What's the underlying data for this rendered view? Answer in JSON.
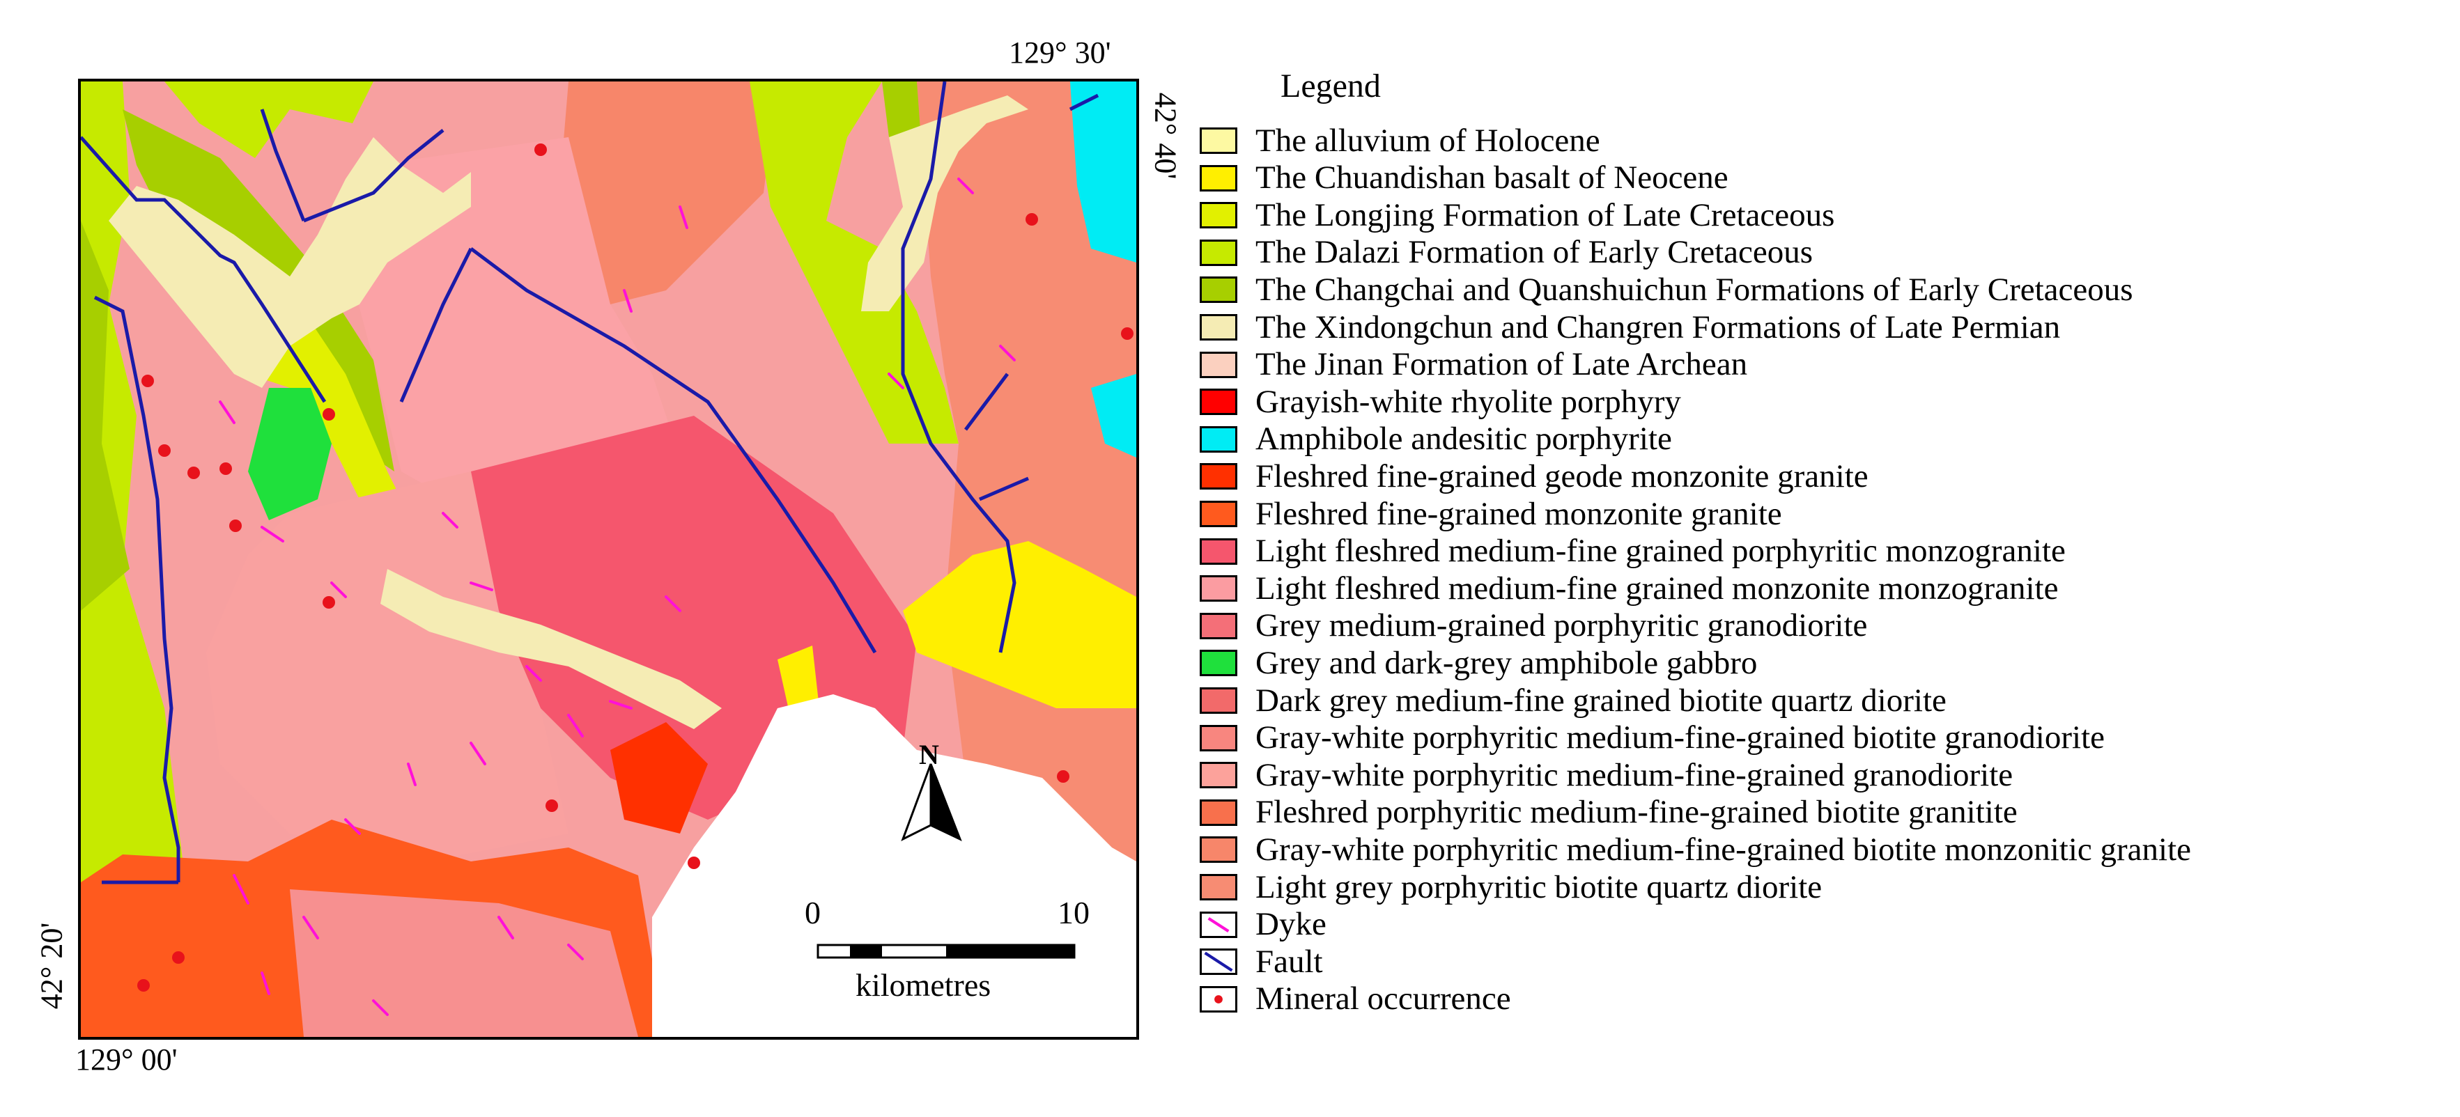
{
  "map": {
    "coords": {
      "top_right": "129° 30'",
      "right_top": "42° 40'",
      "left_bottom": "42° 20'",
      "bottom_left": "129° 00'"
    },
    "north_label": "N",
    "scale": {
      "start": "0",
      "end": "10",
      "unit": "kilometres"
    }
  },
  "legend": {
    "title": "Legend",
    "items": [
      {
        "label": "The alluvium of Holocene",
        "color": "#fdf9a2",
        "kind": "fill"
      },
      {
        "label": "The Chuandishan basalt of Neocene",
        "color": "#ffef00",
        "kind": "fill"
      },
      {
        "label": "The Longjing Formation of Late Cretaceous",
        "color": "#e2f000",
        "kind": "fill"
      },
      {
        "label": "The Dalazi Formation of Early Cretaceous",
        "color": "#c6ea00",
        "kind": "fill"
      },
      {
        "label": "The Changchai and Quanshuichun Formations of Early Cretaceous",
        "color": "#a7cf00",
        "kind": "fill"
      },
      {
        "label": "The Xindongchun and Changren Formations of Late Permian",
        "color": "#f5ecb4",
        "kind": "fill"
      },
      {
        "label": "The Jinan Formation of Late Archean",
        "color": "#fbd0bf",
        "kind": "fill"
      },
      {
        "label": "Grayish-white rhyolite porphyry",
        "color": "#ff0000",
        "kind": "fill"
      },
      {
        "label": "Amphibole andesitic porphyrite",
        "color": "#00ecf4",
        "kind": "fill"
      },
      {
        "label": "Fleshred fine-grained geode monzonite granite",
        "color": "#ff3000",
        "kind": "fill"
      },
      {
        "label": "Fleshred fine-grained monzonite granite",
        "color": "#ff5a1e",
        "kind": "fill"
      },
      {
        "label": "Light fleshred medium-fine grained porphyritic monzogranite",
        "color": "#f5566d",
        "kind": "fill"
      },
      {
        "label": "Light fleshred medium-fine grained monzonite monzogranite",
        "color": "#fb9ca1",
        "kind": "fill"
      },
      {
        "label": "Grey medium-grained porphyritic granodiorite",
        "color": "#f46f78",
        "kind": "fill"
      },
      {
        "label": "Grey and dark-grey amphibole gabbro",
        "color": "#1fe03c",
        "kind": "fill"
      },
      {
        "label": "Dark grey medium-fine grained biotite quartz diorite",
        "color": "#f26a6a",
        "kind": "fill"
      },
      {
        "label": "Gray-white porphyritic medium-fine-grained biotite granodiorite",
        "color": "#f8867f",
        "kind": "fill"
      },
      {
        "label": "Gray-white porphyritic medium-fine-grained granodiorite",
        "color": "#fca29b",
        "kind": "fill"
      },
      {
        "label": "Fleshred porphyritic medium-fine-grained biotite granitite",
        "color": "#f8704c",
        "kind": "fill"
      },
      {
        "label": "Gray-white porphyritic medium-fine-grained biotite monzonitic granite",
        "color": "#f7866a",
        "kind": "fill"
      },
      {
        "label": "Light grey porphyritic biotite quartz diorite",
        "color": "#f78c73",
        "kind": "fill"
      },
      {
        "label": "Dyke",
        "color": "#ff10d8",
        "kind": "dyke"
      },
      {
        "label": "Fault",
        "color": "#1a1aa8",
        "kind": "fault"
      },
      {
        "label": "Mineral occurrence",
        "color": "#e8121b",
        "kind": "point"
      }
    ]
  }
}
